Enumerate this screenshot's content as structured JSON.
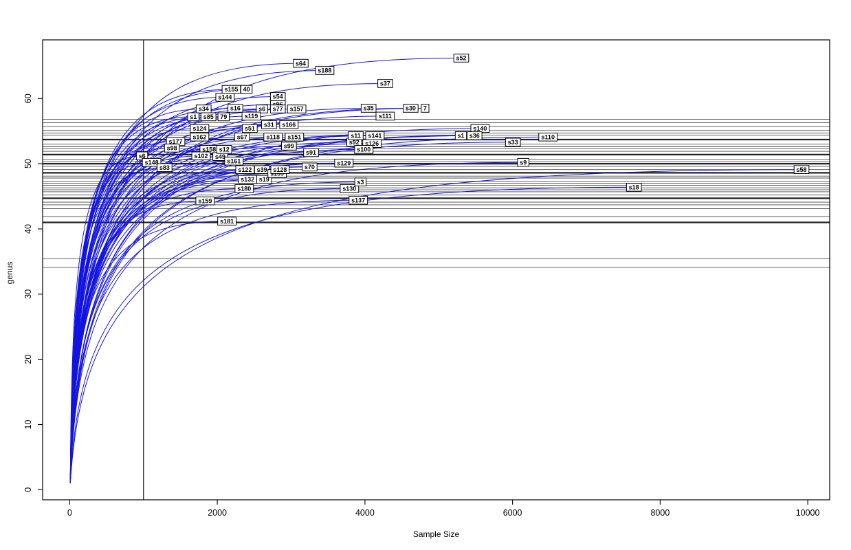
{
  "chart_data": {
    "type": "line",
    "title": "",
    "xlabel": "Sample Size",
    "ylabel": "genus",
    "x_ticks": [
      0,
      2000,
      4000,
      6000,
      8000,
      10000
    ],
    "y_ticks": [
      0,
      10,
      20,
      30,
      40,
      50,
      60
    ],
    "xlim": [
      -360,
      10300
    ],
    "ylim": [
      -1.5,
      69
    ],
    "grid": false,
    "legend": "none",
    "curve_color": "#1414e0",
    "vline_color": "#000000",
    "hline_color": "#4a4a4a",
    "hline_color_thick": "#222222",
    "box_color": "#000000",
    "label_box_fill": "#ffffff",
    "label_box_stroke": "#000000",
    "reference_vline_x": 1000,
    "series_format": [
      "label",
      "sample_size_end",
      "genus_end"
    ],
    "series": [
      [
        "40",
        2395,
        61.4
      ],
      [
        "s144",
        2105,
        60.2
      ],
      [
        "s155",
        2190,
        61.4
      ],
      [
        "s64",
        3130,
        65.4
      ],
      [
        "s188",
        3455,
        64.3
      ],
      [
        "s52",
        5305,
        66.2
      ],
      [
        "s37",
        4275,
        62.3
      ],
      [
        "s96",
        2820,
        59.1
      ],
      [
        "s54",
        2820,
        60.3
      ],
      [
        "s34",
        1815,
        58.4
      ],
      [
        "s16",
        2245,
        58.5
      ],
      [
        "s6",
        2605,
        58.4
      ],
      [
        "s77",
        2820,
        58.4
      ],
      [
        "s157",
        3075,
        58.4
      ],
      [
        "s35",
        4050,
        58.5
      ],
      [
        "7",
        4815,
        58.5
      ],
      [
        "s30",
        4620,
        58.5
      ],
      [
        "s1",
        1675,
        57.2
      ],
      [
        "79",
        2085,
        57.2
      ],
      [
        "s85",
        1880,
        57.2
      ],
      [
        "s119",
        2460,
        57.3
      ],
      [
        "s111",
        4275,
        57.3
      ],
      [
        "s31",
        2700,
        56.0
      ],
      [
        "s166",
        2970,
        56.0
      ],
      [
        "s124",
        1760,
        55.4
      ],
      [
        "s51",
        2440,
        55.4
      ],
      [
        "s140",
        5560,
        55.4
      ],
      [
        "s162",
        1760,
        54.1
      ],
      [
        "s67",
        2335,
        54.1
      ],
      [
        "s118",
        2755,
        54.1
      ],
      [
        "s151",
        3045,
        54.1
      ],
      [
        "s92",
        3855,
        53.3
      ],
      [
        "s126",
        4095,
        53.1
      ],
      [
        "s11",
        3875,
        54.3
      ],
      [
        "s141",
        4135,
        54.3
      ],
      [
        "s1",
        5300,
        54.3
      ],
      [
        "s36",
        5485,
        54.3
      ],
      [
        "s110",
        6480,
        54.1
      ],
      [
        "s33",
        6005,
        53.3
      ],
      [
        "s177",
        1435,
        53.4
      ],
      [
        "s98",
        1385,
        52.4
      ],
      [
        "s158",
        1890,
        52.2
      ],
      [
        "s49",
        2040,
        51.1
      ],
      [
        "s12",
        2095,
        52.2
      ],
      [
        "s99",
        2970,
        52.7
      ],
      [
        "s100",
        3985,
        52.2
      ],
      [
        "s6",
        980,
        51.2
      ],
      [
        "s102",
        1780,
        51.2
      ],
      [
        "s91",
        3270,
        51.7
      ],
      [
        "s148",
        1110,
        50.2
      ],
      [
        "s161",
        2225,
        50.4
      ],
      [
        "s83",
        1285,
        49.4
      ],
      [
        "s122",
        2375,
        49.1
      ],
      [
        "s39",
        2605,
        49.1
      ],
      [
        "s132",
        2410,
        47.6
      ],
      [
        "s19",
        2635,
        47.6
      ],
      [
        "s139",
        2810,
        48.5
      ],
      [
        "s128",
        2850,
        49.1
      ],
      [
        "s70",
        3250,
        49.5
      ],
      [
        "s129",
        3715,
        50.1
      ],
      [
        "s9",
        6145,
        50.2
      ],
      [
        "s58",
        9915,
        49.1
      ],
      [
        "s130",
        3790,
        46.2
      ],
      [
        "s3",
        3940,
        47.2
      ],
      [
        "s180",
        2365,
        46.2
      ],
      [
        "s18",
        7645,
        46.4
      ],
      [
        "s159",
        1835,
        44.3
      ],
      [
        "s137",
        3910,
        44.4
      ],
      [
        "s181",
        2130,
        41.2
      ]
    ],
    "hlines_format": [
      "genus",
      "weight"
    ],
    "hlines": [
      [
        56.8,
        1
      ],
      [
        56.3,
        1
      ],
      [
        55.7,
        1
      ],
      [
        55.1,
        1
      ],
      [
        54.7,
        1
      ],
      [
        54.4,
        1
      ],
      [
        53.7,
        2
      ],
      [
        53.0,
        1
      ],
      [
        52.6,
        1
      ],
      [
        52.3,
        1
      ],
      [
        51.9,
        1
      ],
      [
        51.4,
        2
      ],
      [
        50.6,
        1
      ],
      [
        50.3,
        1
      ],
      [
        50.0,
        2
      ],
      [
        49.6,
        1
      ],
      [
        49.1,
        1
      ],
      [
        48.6,
        2
      ],
      [
        48.1,
        1
      ],
      [
        47.8,
        1
      ],
      [
        47.3,
        1
      ],
      [
        47.0,
        1
      ],
      [
        46.7,
        1
      ],
      [
        46.3,
        1
      ],
      [
        46.0,
        1
      ],
      [
        45.7,
        1
      ],
      [
        45.2,
        1
      ],
      [
        44.7,
        2
      ],
      [
        44.1,
        1
      ],
      [
        43.7,
        1
      ],
      [
        43.1,
        1
      ],
      [
        41.9,
        1
      ],
      [
        41.0,
        2
      ],
      [
        35.4,
        1
      ],
      [
        34.1,
        1
      ]
    ]
  }
}
